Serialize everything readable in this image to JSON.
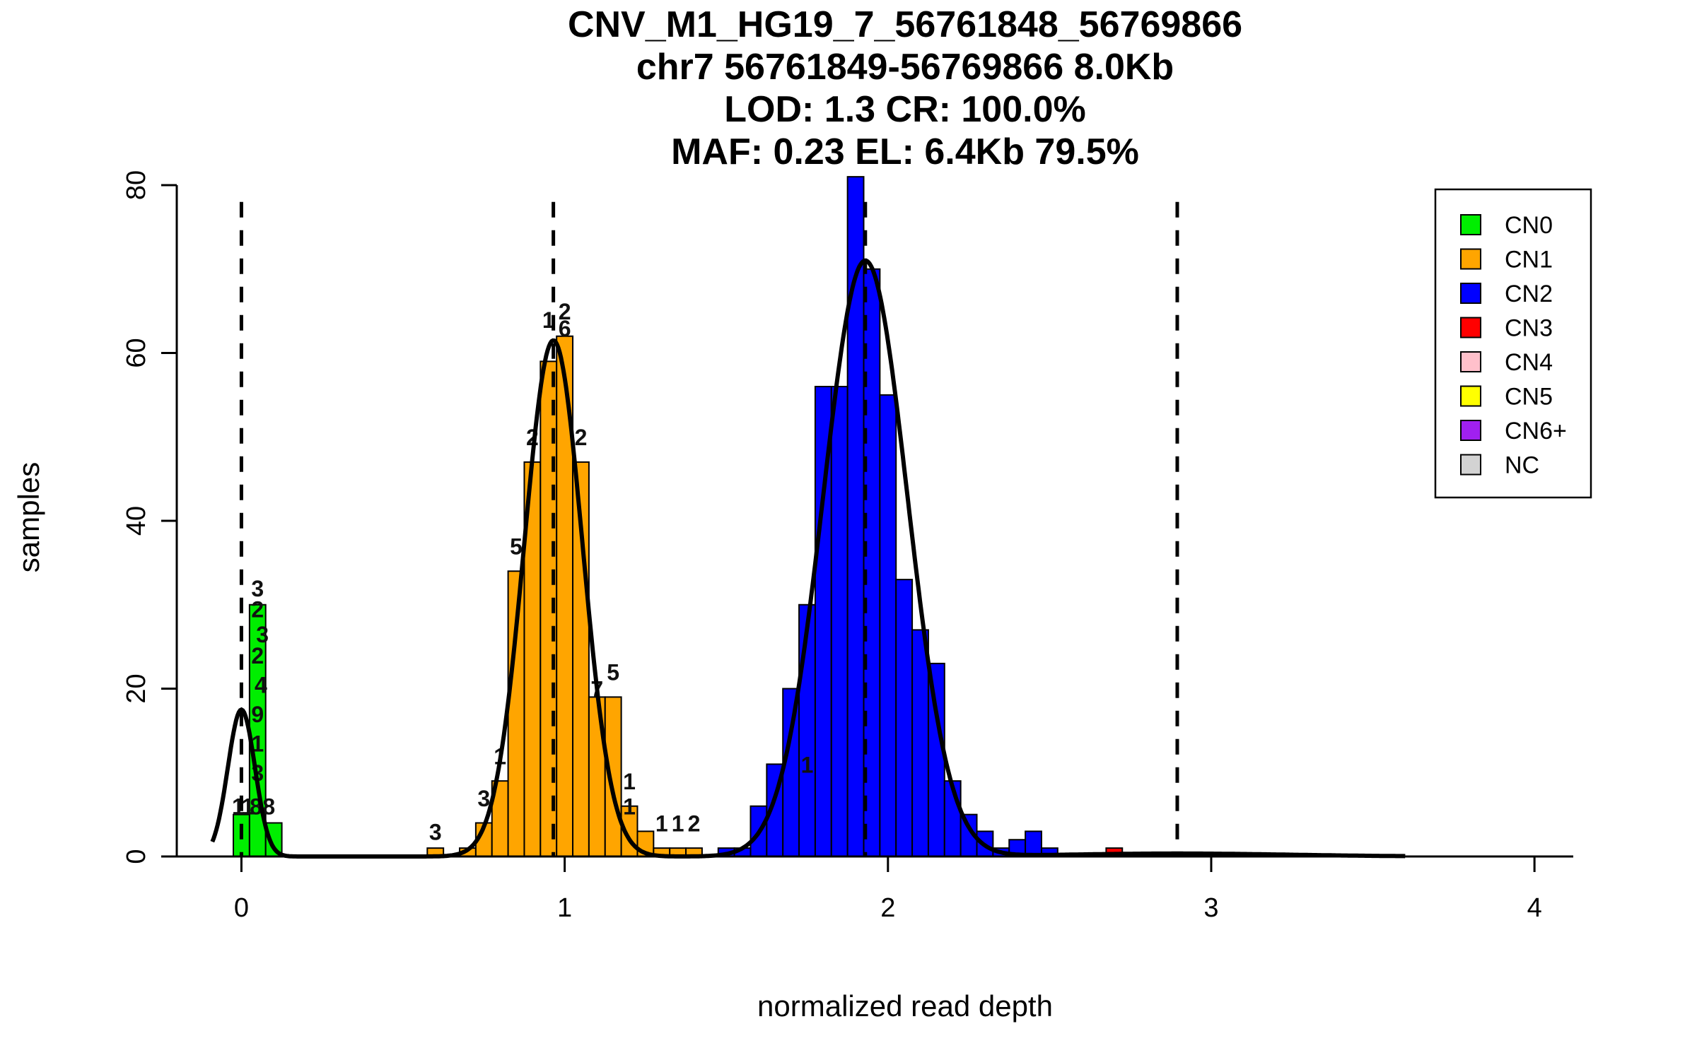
{
  "chart_data": {
    "type": "bar",
    "title_lines": [
      "CNV_M1_HG19_7_56761848_56769866",
      "chr7 56761849-56769866 8.0Kb",
      "LOD: 1.3 CR: 100.0%",
      "MAF: 0.23 EL: 6.4Kb 79.5%"
    ],
    "xlabel": "normalized read depth",
    "ylabel": "samples",
    "xlim": [
      -0.2,
      4.12
    ],
    "ylim": [
      0,
      80
    ],
    "xticks": [
      "0",
      "1",
      "2",
      "3",
      "4"
    ],
    "yticks": [
      "0",
      "20",
      "40",
      "60",
      "80"
    ],
    "grid": false,
    "legend_position": "top-right",
    "legend": [
      {
        "label": "CN0",
        "color": "#00ee00"
      },
      {
        "label": "CN1",
        "color": "#ffa500"
      },
      {
        "label": "CN2",
        "color": "#0000ff"
      },
      {
        "label": "CN3",
        "color": "#ff0000"
      },
      {
        "label": "CN4",
        "color": "#ffc0cb"
      },
      {
        "label": "CN5",
        "color": "#ffff00"
      },
      {
        "label": "CN6+",
        "color": "#a020f0"
      },
      {
        "label": "NC",
        "color": "#d3d3d3"
      }
    ],
    "dashed_lines_x": [
      0,
      0.965,
      1.93,
      2.895
    ],
    "bin_width": 0.05,
    "series": [
      {
        "name": "CN0",
        "color": "#00ee00",
        "bin_starts": [
          -0.025,
          0.025,
          0.075
        ],
        "values": [
          5,
          30,
          4
        ]
      },
      {
        "name": "CN1",
        "color": "#ffa500",
        "bin_starts": [
          0.575,
          0.625,
          0.675,
          0.725,
          0.775,
          0.825,
          0.875,
          0.925,
          0.975,
          1.025,
          1.075,
          1.125,
          1.175,
          1.225,
          1.275,
          1.325,
          1.375
        ],
        "values": [
          1,
          0,
          1,
          4,
          9,
          34,
          47,
          59,
          62,
          47,
          19,
          19,
          6,
          3,
          1,
          1,
          1
        ]
      },
      {
        "name": "CN2",
        "color": "#0000ff",
        "bin_starts": [
          1.475,
          1.525,
          1.575,
          1.625,
          1.675,
          1.725,
          1.775,
          1.825,
          1.875,
          1.925,
          1.975,
          2.025,
          2.075,
          2.125,
          2.175,
          2.225,
          2.275,
          2.325,
          2.375,
          2.425,
          2.475
        ],
        "values": [
          1,
          1,
          6,
          11,
          20,
          30,
          56,
          56,
          81,
          70,
          55,
          33,
          27,
          23,
          9,
          5,
          3,
          1,
          2,
          3,
          1
        ]
      },
      {
        "name": "CN3",
        "color": "#ff0000",
        "bin_starts": [
          2.675
        ],
        "values": [
          1
        ]
      }
    ],
    "bar_labels": [
      {
        "x": -0.01,
        "y": 5,
        "text": "1"
      },
      {
        "x": 0.02,
        "y": 5,
        "text": "1"
      },
      {
        "x": 0.045,
        "y": 5,
        "text": "8"
      },
      {
        "x": 0.085,
        "y": 5,
        "text": "8"
      },
      {
        "x": 0.05,
        "y": 31,
        "text": "3"
      },
      {
        "x": 0.05,
        "y": 28.5,
        "text": "2"
      },
      {
        "x": 0.065,
        "y": 25.5,
        "text": "3"
      },
      {
        "x": 0.05,
        "y": 23,
        "text": "2"
      },
      {
        "x": 0.06,
        "y": 19.5,
        "text": "4"
      },
      {
        "x": 0.05,
        "y": 16,
        "text": "9"
      },
      {
        "x": 0.05,
        "y": 12.5,
        "text": "1"
      },
      {
        "x": 0.05,
        "y": 9,
        "text": "3"
      },
      {
        "x": 0.6,
        "y": 2,
        "text": "3"
      },
      {
        "x": 0.75,
        "y": 6,
        "text": "3"
      },
      {
        "x": 0.8,
        "y": 11,
        "text": "1"
      },
      {
        "x": 0.85,
        "y": 36,
        "text": "5"
      },
      {
        "x": 0.95,
        "y": 63,
        "text": "1"
      },
      {
        "x": 1.0,
        "y": 64,
        "text": "2"
      },
      {
        "x": 1.0,
        "y": 62,
        "text": "6"
      },
      {
        "x": 0.9,
        "y": 49,
        "text": "2"
      },
      {
        "x": 1.05,
        "y": 49,
        "text": "2"
      },
      {
        "x": 1.15,
        "y": 21,
        "text": "5"
      },
      {
        "x": 1.1,
        "y": 19,
        "text": "7"
      },
      {
        "x": 1.2,
        "y": 8,
        "text": "1"
      },
      {
        "x": 1.2,
        "y": 5,
        "text": "1"
      },
      {
        "x": 1.3,
        "y": 3,
        "text": "1"
      },
      {
        "x": 1.35,
        "y": 3,
        "text": "1"
      },
      {
        "x": 1.4,
        "y": 3,
        "text": "2"
      },
      {
        "x": 1.75,
        "y": 10,
        "text": "1"
      }
    ],
    "density_curve": {
      "color": "#000000",
      "components": [
        {
          "mean": 0.0,
          "sd": 0.042,
          "peak": 17.5
        },
        {
          "mean": 0.965,
          "sd": 0.09,
          "peak": 61.5
        },
        {
          "mean": 1.93,
          "sd": 0.13,
          "peak": 71
        },
        {
          "mean": 2.895,
          "sd": 0.35,
          "peak": 0.35
        }
      ]
    }
  }
}
